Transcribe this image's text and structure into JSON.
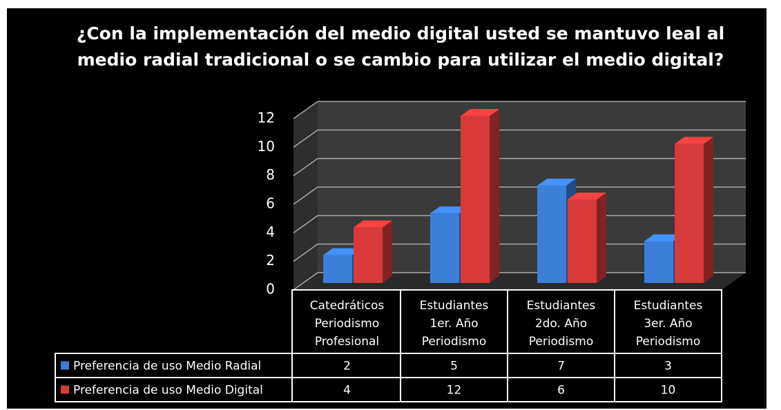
{
  "chart_data": {
    "type": "bar3d",
    "title": [
      "¿Con la implementación del medio digital usted se mantuvo leal al",
      "medio radial tradicional o se cambio para utilizar el medio digital?"
    ],
    "categories": [
      "Catedráticos\nPeriodismo\nProfesional",
      "Estudiantes\n1er. Año\nPeriodismo",
      "Estudiantes\n2do. Año\nPeriodismo",
      "Estudiantes\n3er. Año\nPeriodismo"
    ],
    "series": [
      {
        "name": "Preferencia de uso Medio Radial",
        "color": "#3b7fd9",
        "values": [
          2,
          5,
          7,
          3
        ]
      },
      {
        "name": "Preferencia de uso Medio Digital",
        "color": "#d83a3a",
        "values": [
          4,
          12,
          6,
          10
        ]
      }
    ],
    "ylim": [
      0,
      12
    ],
    "yticks": [
      0,
      2,
      4,
      6,
      8,
      10,
      12
    ],
    "grid": true,
    "data_table": true
  }
}
